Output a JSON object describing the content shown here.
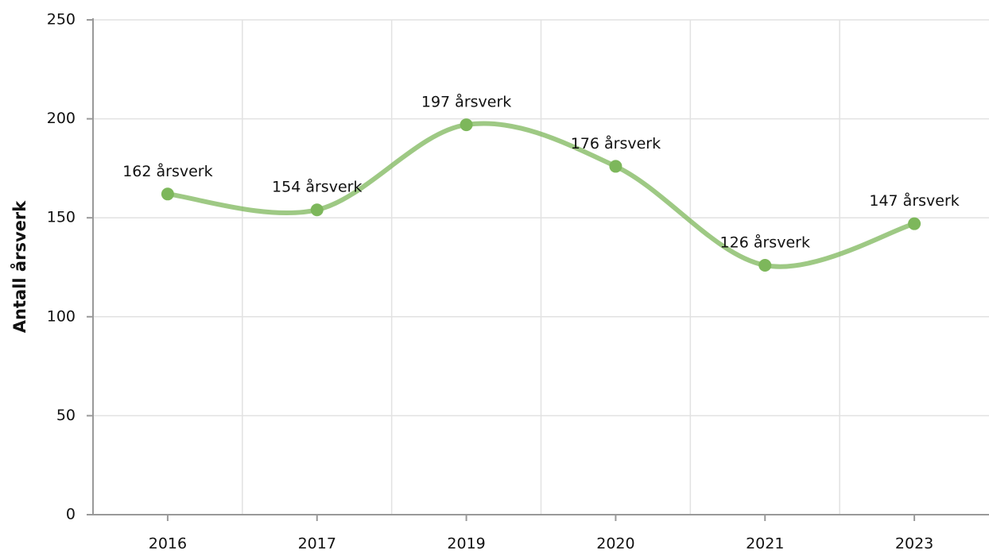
{
  "chart_data": {
    "type": "line",
    "y_label": "Antall årsverk",
    "categories": [
      "2016",
      "2017",
      "2019",
      "2020",
      "2021",
      "2023"
    ],
    "series": [
      {
        "name": "Årsverk",
        "color": "#7db75b",
        "values": [
          162,
          154,
          197,
          176,
          126,
          147
        ],
        "value_labels": [
          "162 årsverk",
          "154 årsverk",
          "197 årsverk",
          "176 årsverk",
          "126 årsverk",
          "147 årsverk"
        ]
      }
    ],
    "ylim": [
      0,
      250
    ],
    "yticks": [
      0,
      50,
      100,
      150,
      200,
      250
    ],
    "grid": true
  }
}
